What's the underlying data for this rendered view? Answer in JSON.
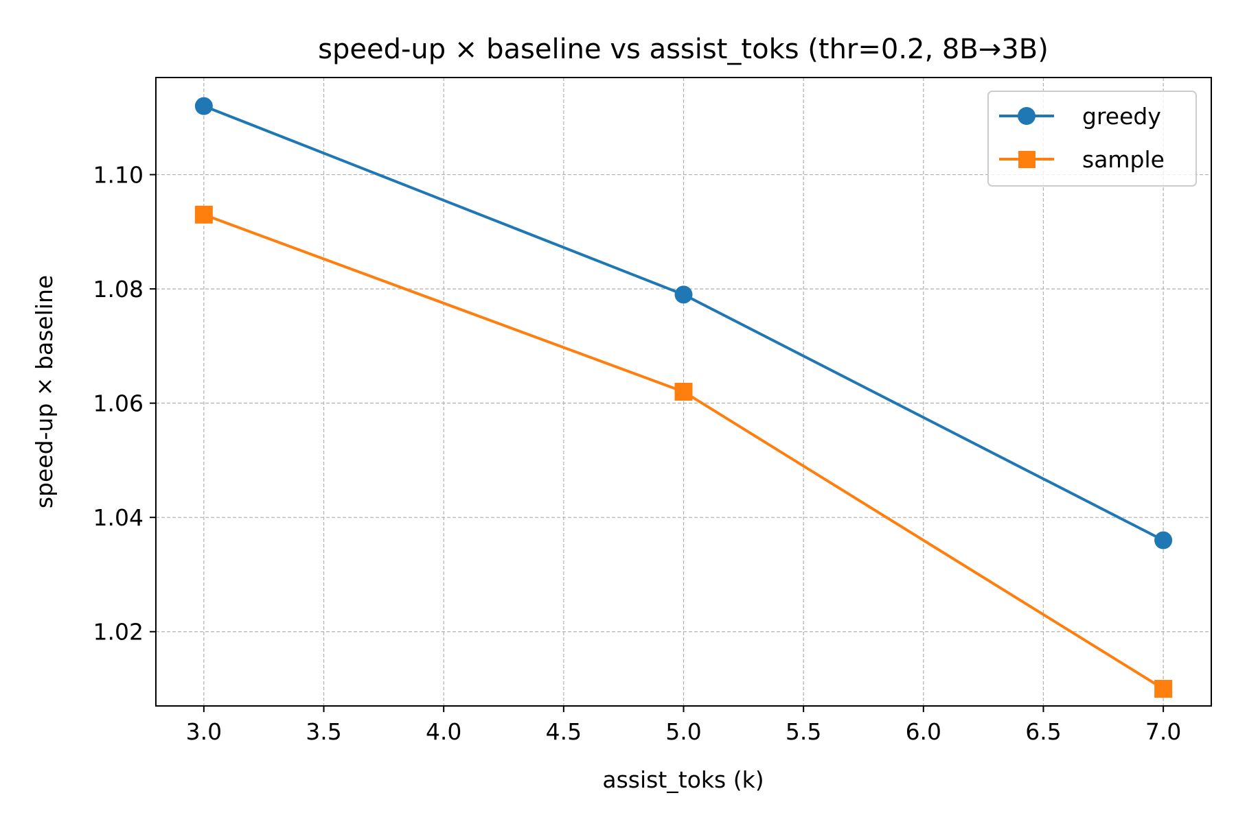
{
  "chart_data": {
    "type": "line",
    "title": "speed-up × baseline vs assist_toks (thr=0.2, 8B→3B)",
    "xlabel": "assist_toks (k)",
    "ylabel": "speed-up × baseline",
    "xlim": [
      2.8,
      7.2
    ],
    "ylim": [
      1.007,
      1.117
    ],
    "x_ticks": [
      3.0,
      3.5,
      4.0,
      4.5,
      5.0,
      5.5,
      6.0,
      6.5,
      7.0
    ],
    "x_tick_labels": [
      "3.0",
      "3.5",
      "4.0",
      "4.5",
      "5.0",
      "5.5",
      "6.0",
      "6.5",
      "7.0"
    ],
    "y_ticks": [
      1.02,
      1.04,
      1.06,
      1.08,
      1.1
    ],
    "y_tick_labels": [
      "1.02",
      "1.04",
      "1.06",
      "1.08",
      "1.10"
    ],
    "grid": true,
    "legend_position": "top-right",
    "x": [
      3,
      5,
      7
    ],
    "series": [
      {
        "name": "greedy",
        "values": [
          1.112,
          1.079,
          1.036
        ],
        "color": "#1f77b4",
        "marker": "circle"
      },
      {
        "name": "sample",
        "values": [
          1.093,
          1.062,
          1.01
        ],
        "color": "#ff7f0e",
        "marker": "square"
      }
    ]
  }
}
